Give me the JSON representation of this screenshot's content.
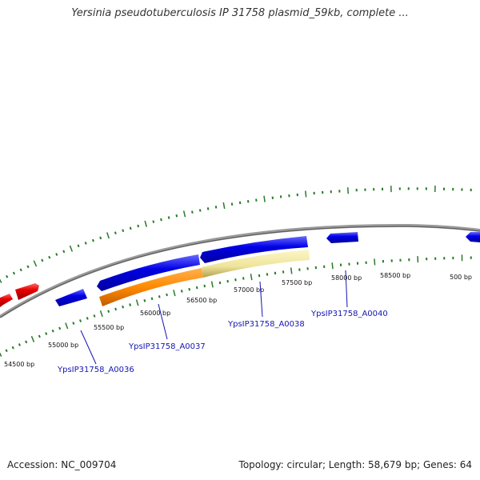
{
  "title": "Yersinia pseudotuberculosis IP 31758 plasmid_59kb, complete ...",
  "footer": {
    "accession": "Accession: NC_009704",
    "topology": "Topology: circular; Length: 58,679 bp; Genes: 64"
  },
  "colors": {
    "forward_gene": "#0000e0",
    "reverse_gene": "#0000e0",
    "red_gene": "#e00000",
    "orange_feature": "#ff8c00",
    "pale_feature": "#f0e8a0",
    "backbone": "#888888",
    "tick": "#2a7a2a",
    "label": "#1414b4"
  },
  "ticks": {
    "inner_labels": [
      "54500 bp",
      "55000 bp",
      "55500 bp",
      "56000 bp",
      "56500 bp",
      "57000 bp",
      "57500 bp",
      "58000 bp",
      "58500 bp",
      "500 bp"
    ]
  },
  "genes": [
    {
      "name": "YpsIP31758_A0036"
    },
    {
      "name": "YpsIP31758_A0037"
    },
    {
      "name": "YpsIP31758_A0038"
    },
    {
      "name": "YpsIP31758_A0040"
    }
  ]
}
